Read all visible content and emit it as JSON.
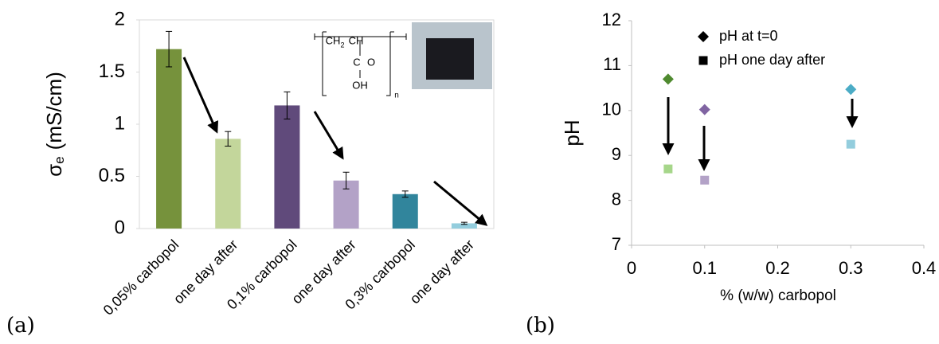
{
  "chart_data": [
    {
      "type": "bar",
      "panel": "(a)",
      "ylabel": {
        "symbol": "σ",
        "subscript": "e",
        "unit": "(mS/cm)"
      },
      "categories": [
        "0,05% carbopol",
        "one day after",
        "0,1% carbopol",
        "one day after",
        "0,3% carbopol",
        "one day after"
      ],
      "values": [
        1.72,
        0.86,
        1.18,
        0.46,
        0.33,
        0.05
      ],
      "errors": [
        0.17,
        0.07,
        0.13,
        0.08,
        0.03,
        0.01
      ],
      "colors": [
        "#76923c",
        "#c3d69b",
        "#604a7b",
        "#b3a2c7",
        "#31859c",
        "#93cddd"
      ],
      "ylim": [
        0,
        2
      ],
      "yticks": [
        0,
        0.5,
        1,
        1.5,
        2
      ],
      "inset_labels": [
        "CH",
        "2",
        "CH",
        "C",
        "O",
        "OH",
        "n"
      ]
    },
    {
      "type": "scatter",
      "panel": "(b)",
      "xlabel": "% (w/w) carbopol",
      "ylabel": "pH",
      "xlim": [
        0,
        0.4
      ],
      "xticks": [
        0,
        0.1,
        0.2,
        0.3,
        0.4
      ],
      "ylim": [
        7,
        12
      ],
      "yticks": [
        7,
        8,
        9,
        10,
        11,
        12
      ],
      "series": [
        {
          "name": "pH at t=0",
          "marker": "diamond",
          "color": "#000000",
          "x": [
            0.05,
            0.1,
            0.3
          ],
          "values": [
            10.7,
            10.02,
            10.47
          ],
          "point_colors": [
            "#4f8a2f",
            "#8064a2",
            "#4bacc6"
          ]
        },
        {
          "name": "pH one day after",
          "marker": "square",
          "color": "#000000",
          "x": [
            0.05,
            0.1,
            0.3
          ],
          "values": [
            8.7,
            8.45,
            9.25
          ],
          "point_colors": [
            "#a6d68a",
            "#b3a2c7",
            "#93cddd"
          ]
        }
      ]
    }
  ]
}
